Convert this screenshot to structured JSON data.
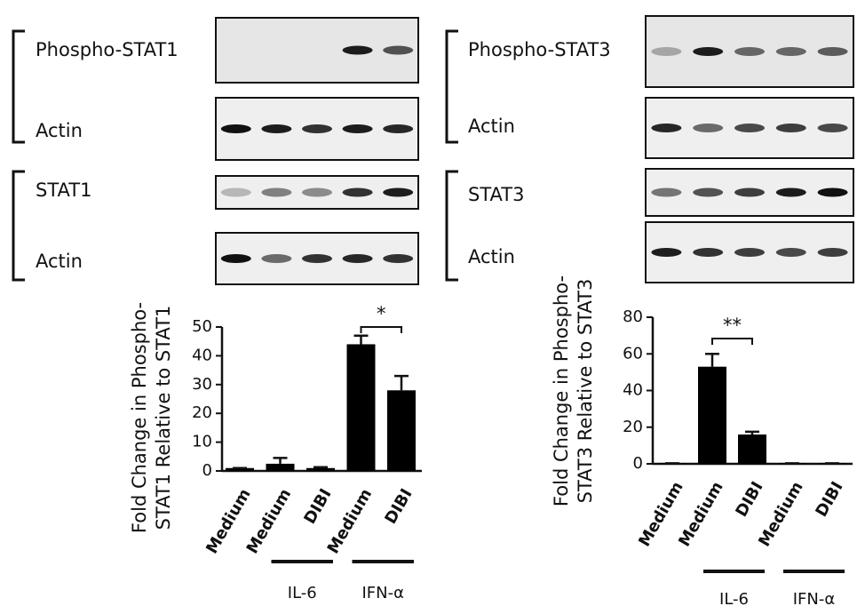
{
  "blots": [
    {
      "labels": [
        "Phospho-STAT1",
        "Actin",
        "STAT1",
        "Actin"
      ]
    },
    {
      "labels": [
        "Phospho-STAT3",
        "Actin",
        "STAT3",
        "Actin"
      ]
    }
  ],
  "chart_data": [
    {
      "type": "bar",
      "ylabel": [
        "Fold Change in Phospho-",
        "STAT1 Relative to STAT1"
      ],
      "categories": [
        "Medium",
        "Medium",
        "DIBI",
        "Medium",
        "DIBI"
      ],
      "groups": [
        null,
        "IL-6",
        "IL-6",
        "IFN-α",
        "IFN-α"
      ],
      "values": [
        1,
        2.5,
        1,
        44,
        28
      ],
      "errors": [
        0,
        2,
        0.3,
        3,
        5
      ],
      "annotation": "*",
      "color": "#000000",
      "ylim": [
        0,
        50
      ],
      "yticks": [
        0,
        10,
        20,
        30,
        40,
        50
      ]
    },
    {
      "type": "bar",
      "ylabel": [
        "Fold Change in Phospho-",
        "STAT3 Relative to STAT3"
      ],
      "categories": [
        "Medium",
        "Medium",
        "DIBI",
        "Medium",
        "DIBI"
      ],
      "groups": [
        null,
        "IL-6",
        "IL-6",
        "IFN-α",
        "IFN-α"
      ],
      "values": [
        0.3,
        53,
        16,
        0.3,
        0.3
      ],
      "errors": [
        0,
        7,
        1.5,
        0,
        0
      ],
      "annotation": "**",
      "color": "#000000",
      "ylim": [
        0,
        80
      ],
      "yticks": [
        0,
        20,
        40,
        60,
        80
      ]
    }
  ]
}
